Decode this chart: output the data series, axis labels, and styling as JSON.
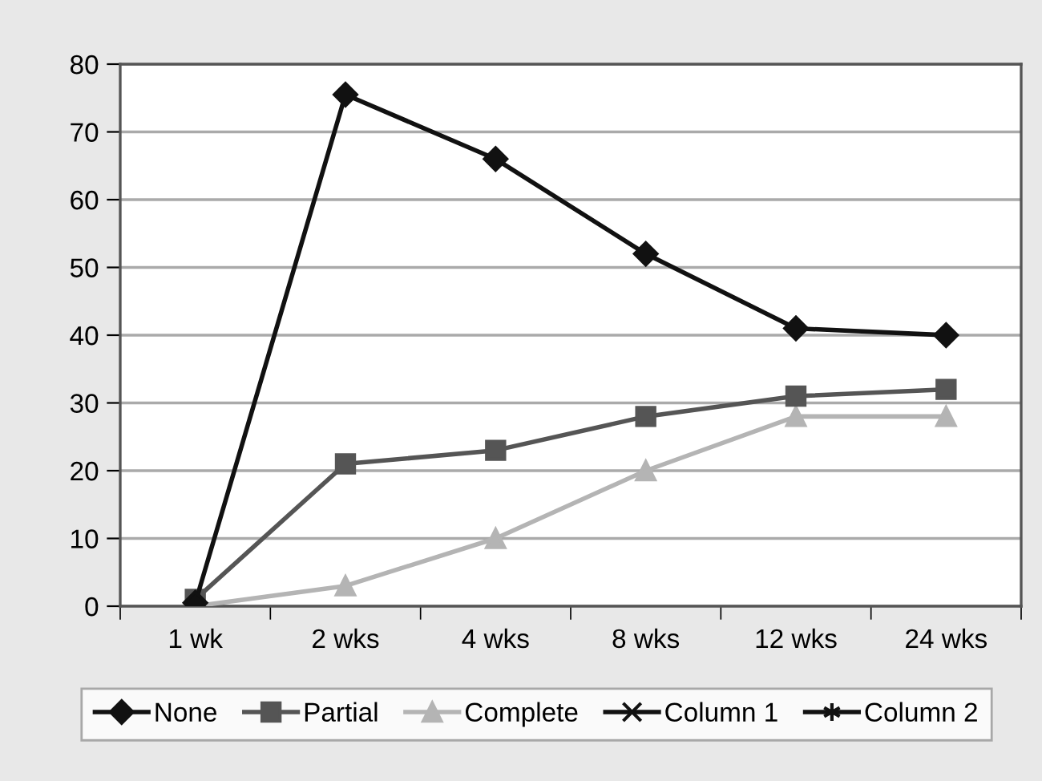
{
  "chart_data": {
    "type": "line",
    "categories": [
      "1 wk",
      "2 wks",
      "4 wks",
      "8 wks",
      "12 wks",
      "24 wks"
    ],
    "series": [
      {
        "name": "None",
        "color": "#111111",
        "marker": "diamond",
        "values": [
          0.5,
          75.5,
          66,
          52,
          41,
          40
        ]
      },
      {
        "name": "Partial",
        "color": "#555555",
        "marker": "square",
        "values": [
          1,
          21,
          23,
          28,
          31,
          32
        ]
      },
      {
        "name": "Complete",
        "color": "#b4b4b4",
        "marker": "triangle",
        "values": [
          0,
          3,
          10,
          20,
          28,
          28
        ]
      },
      {
        "name": "Column 1",
        "color": "#111111",
        "marker": "cross",
        "values": [
          null,
          null,
          null,
          null,
          null,
          null
        ]
      },
      {
        "name": "Column 2",
        "color": "#111111",
        "marker": "star",
        "values": [
          null,
          null,
          null,
          null,
          null,
          null
        ]
      }
    ],
    "ylim": [
      0,
      80
    ],
    "yticks": [
      0,
      10,
      20,
      30,
      40,
      50,
      60,
      70,
      80
    ],
    "grid": "y",
    "legend": "bottom",
    "line_style": "solid"
  }
}
